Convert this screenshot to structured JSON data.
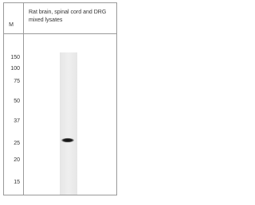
{
  "header": {
    "marker_label": "M",
    "sample_label": [
      "Rat brain, spinal cord and DRG",
      "mixed lysates"
    ]
  },
  "markers": [
    150,
    100,
    75,
    50,
    37,
    25,
    20,
    15
  ]
}
